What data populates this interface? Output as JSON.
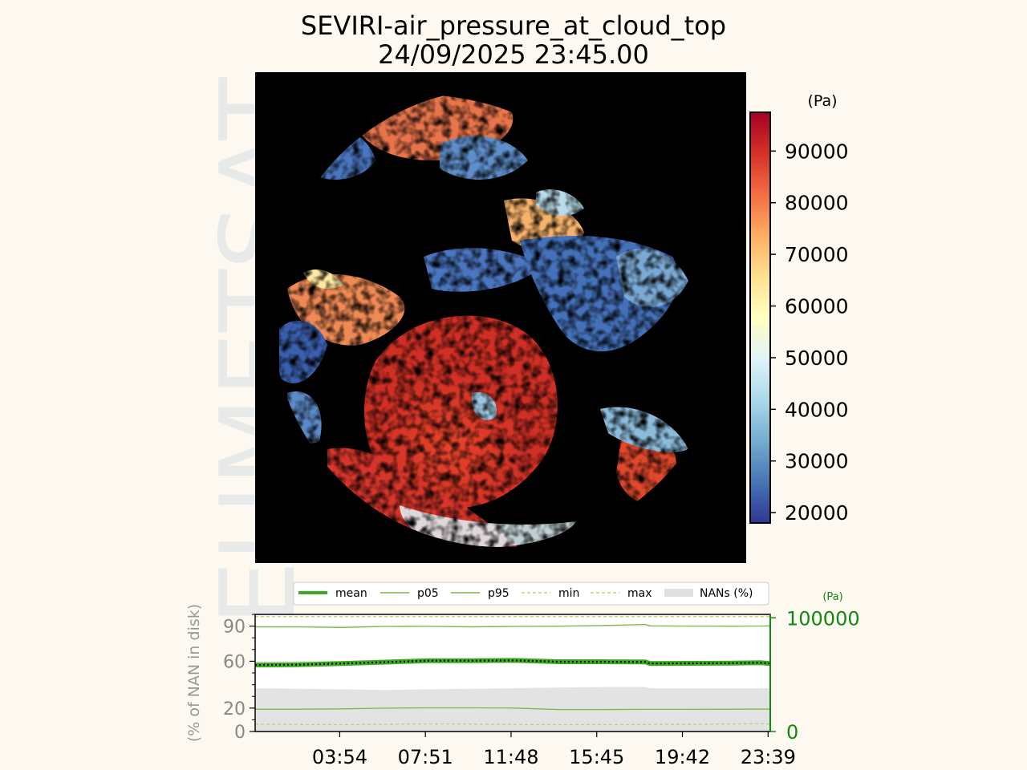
{
  "watermark": "EUMETSAT",
  "title": "SEVIRI-air_pressure_at_cloud_top",
  "subtitle": "24/09/2025 23:45.00",
  "colorbar": {
    "unit": "(Pa)",
    "ticks": [
      20000,
      30000,
      40000,
      50000,
      60000,
      70000,
      80000,
      90000
    ],
    "tick_labels": [
      "20000",
      "30000",
      "40000",
      "50000",
      "60000",
      "70000",
      "80000",
      "90000"
    ],
    "range": [
      18000,
      97500
    ],
    "colors": [
      "#313695",
      "#4575b4",
      "#74add1",
      "#abd9e9",
      "#e0f3f8",
      "#ffffbf",
      "#fee090",
      "#fdae61",
      "#f46d43",
      "#d73027",
      "#a50026"
    ]
  },
  "legend": {
    "entries": [
      "mean",
      "p05",
      "p95",
      "min",
      "max",
      "NANs (%)"
    ],
    "colors": {
      "mean": "#3aaa22",
      "p05": "#7cb843",
      "p95": "#7cb843",
      "min": "#b5d86a",
      "max": "#b5d86a",
      "nan": "#e0e0e0"
    }
  },
  "chart_data": {
    "type": "line",
    "x_tick_labels": [
      "03:54",
      "07:51",
      "11:48",
      "15:45",
      "19:42",
      "23:39"
    ],
    "x_tick_hours": [
      3.9,
      7.85,
      11.8,
      15.75,
      19.7,
      23.65
    ],
    "x_range": [
      0,
      23.75
    ],
    "y_left": {
      "label": "(% of NAN in disk)",
      "ticks": [
        0,
        20,
        60,
        90
      ],
      "tick_labels": [
        "0",
        "20",
        "60",
        "90"
      ],
      "range": [
        0,
        100
      ]
    },
    "y_right": {
      "label": "(Pa)",
      "ticks": [
        0,
        100000
      ],
      "tick_labels": [
        "0",
        "100000"
      ],
      "range": [
        0,
        103000
      ]
    },
    "x_hours": [
      0,
      2,
      4,
      6,
      8,
      10,
      12,
      14,
      16,
      18,
      18.2,
      20,
      22,
      23.3,
      23.75
    ],
    "series": [
      {
        "name": "mean",
        "axis": "right",
        "values": [
          58500,
          58800,
          59800,
          61000,
          62300,
          62300,
          62500,
          61400,
          61400,
          61200,
          59800,
          60000,
          60200,
          60500,
          59800
        ]
      },
      {
        "name": "p05",
        "axis": "right",
        "values": [
          19600,
          19600,
          19900,
          20500,
          20800,
          20800,
          20600,
          19300,
          19300,
          19500,
          19500,
          19500,
          19600,
          19700,
          19600
        ]
      },
      {
        "name": "p95",
        "axis": "right",
        "values": [
          92000,
          92000,
          91500,
          92400,
          92500,
          92000,
          92400,
          92600,
          93200,
          94200,
          92900,
          92700,
          92600,
          92800,
          92900
        ]
      },
      {
        "name": "min",
        "axis": "right",
        "values": [
          6500,
          6200,
          6000,
          6400,
          6700,
          6500,
          6200,
          6000,
          6100,
          6100,
          6200,
          6200,
          6600,
          6900,
          6500
        ]
      },
      {
        "name": "max",
        "axis": "right",
        "values": [
          101000,
          101000,
          101000,
          101000,
          101000,
          101000,
          101000,
          101000,
          101000,
          101000,
          101000,
          101000,
          101000,
          101000,
          101000
        ]
      },
      {
        "name": "NANs (%)",
        "axis": "left",
        "values": [
          37,
          36.5,
          36,
          35.5,
          36,
          36.5,
          37,
          37.5,
          38,
          38,
          37,
          37,
          37,
          37,
          37
        ]
      }
    ]
  }
}
